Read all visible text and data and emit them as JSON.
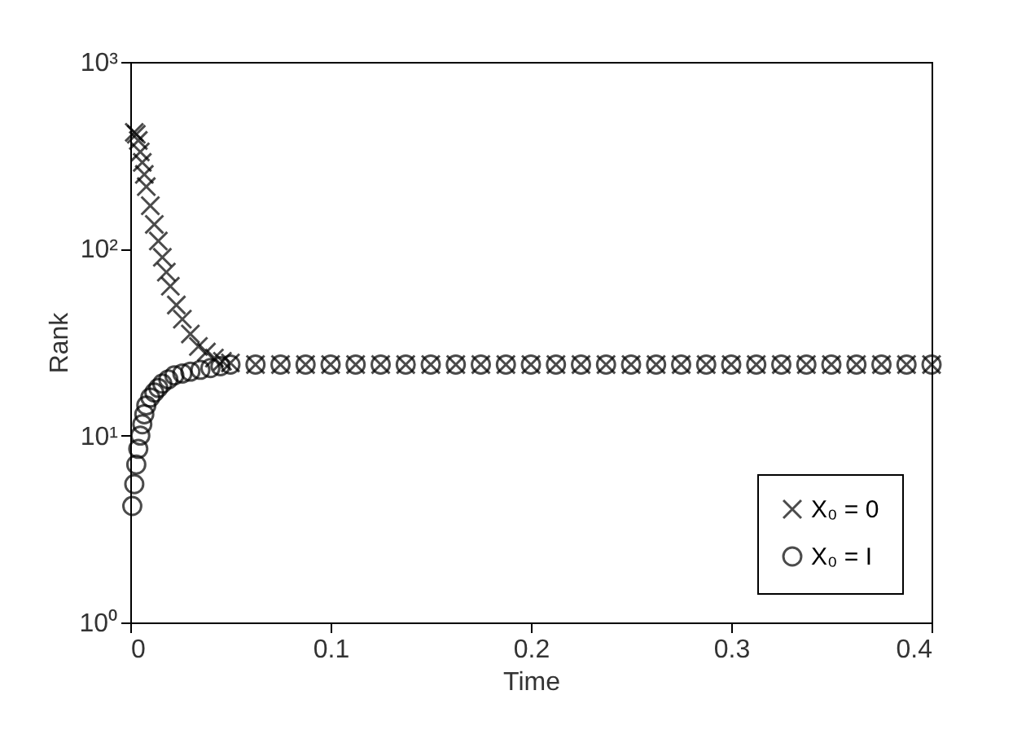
{
  "chart_data": {
    "type": "scatter",
    "xlabel": "Time",
    "ylabel": "Rank",
    "xlim": [
      0,
      0.4
    ],
    "xticks": [
      0,
      0.1,
      0.2,
      0.3,
      0.4
    ],
    "ylim": [
      1,
      1000
    ],
    "yticks": [
      {
        "value": 1,
        "label": "10⁰"
      },
      {
        "value": 10,
        "label": "10¹"
      },
      {
        "value": 100,
        "label": "10²"
      },
      {
        "value": 1000,
        "label": "10³"
      }
    ],
    "log": "y",
    "grid": false,
    "legend": "bottom right",
    "series": [
      {
        "name": "X₀ = 0",
        "color": "#000000",
        "marker": "cross",
        "x": [
          0.002,
          0.003,
          0.004,
          0.005,
          0.006,
          0.007,
          0.008,
          0.01,
          0.012,
          0.014,
          0.016,
          0.018,
          0.02,
          0.023,
          0.026,
          0.03,
          0.034,
          0.038,
          0.042,
          0.046,
          0.05,
          0.0625,
          0.075,
          0.0875,
          0.1,
          0.1125,
          0.125,
          0.1375,
          0.15,
          0.1625,
          0.175,
          0.1875,
          0.2,
          0.2125,
          0.225,
          0.2375,
          0.25,
          0.2625,
          0.275,
          0.2875,
          0.3,
          0.3125,
          0.325,
          0.3375,
          0.35,
          0.3625,
          0.375,
          0.3875,
          0.4
        ],
        "values": [
          420,
          410,
          380,
          330,
          290,
          250,
          215,
          170,
          135,
          110,
          90,
          75,
          63,
          50,
          42,
          35,
          30,
          28,
          26,
          25,
          24.5,
          24,
          24,
          24,
          24,
          24,
          24,
          24,
          24,
          24,
          24,
          24,
          24,
          24,
          24,
          24,
          24,
          24,
          24,
          24,
          24,
          24,
          24,
          24,
          24,
          24,
          24,
          24,
          24
        ]
      },
      {
        "name": "X₀ = I",
        "color": "#000000",
        "marker": "circle",
        "x": [
          0.001,
          0.002,
          0.003,
          0.004,
          0.005,
          0.006,
          0.007,
          0.008,
          0.01,
          0.012,
          0.014,
          0.016,
          0.019,
          0.022,
          0.026,
          0.03,
          0.035,
          0.04,
          0.045,
          0.05,
          0.0625,
          0.075,
          0.0875,
          0.1,
          0.1125,
          0.125,
          0.1375,
          0.15,
          0.1625,
          0.175,
          0.1875,
          0.2,
          0.2125,
          0.225,
          0.2375,
          0.25,
          0.2625,
          0.275,
          0.2875,
          0.3,
          0.3125,
          0.325,
          0.3375,
          0.35,
          0.3625,
          0.375,
          0.3875,
          0.4
        ],
        "values": [
          4.2,
          5.5,
          7,
          8.5,
          10,
          11.5,
          13,
          14.5,
          16,
          17,
          18,
          19,
          20,
          21,
          21.5,
          22,
          22.5,
          23,
          23.5,
          24,
          24,
          24,
          24,
          24,
          24,
          24,
          24,
          24,
          24,
          24,
          24,
          24,
          24,
          24,
          24,
          24,
          24,
          24,
          24,
          24,
          24,
          24,
          24,
          24,
          24,
          24,
          24,
          24
        ]
      }
    ]
  }
}
